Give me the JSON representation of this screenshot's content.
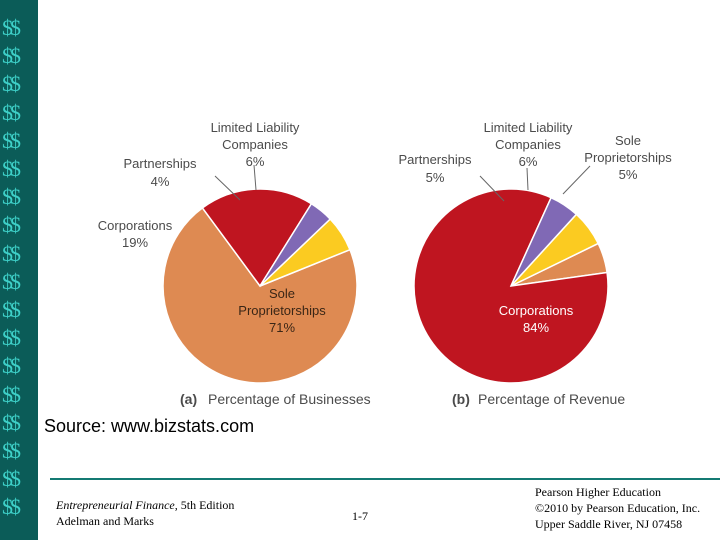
{
  "sidebar": {
    "pattern_text": "$$",
    "repeat_count": 18,
    "bg_color": "#0b5c58",
    "glyph_color": "#3ed0c8"
  },
  "chart_data": [
    {
      "type": "pie",
      "panel_label": "(a)",
      "title": "Percentage of Businesses",
      "slices": [
        {
          "name": "Sole Proprietorships",
          "value": 71,
          "value_label": "71%",
          "color": "#de8a52"
        },
        {
          "name": "Corporations",
          "value": 19,
          "value_label": "19%",
          "color": "#bf1520"
        },
        {
          "name": "Partnerships",
          "value": 4,
          "value_label": "4%",
          "color": "#8069b5"
        },
        {
          "name": "Limited Liability Companies",
          "value": 6,
          "value_label": "6%",
          "color": "#fbcb21"
        }
      ]
    },
    {
      "type": "pie",
      "panel_label": "(b)",
      "title": "Percentage of Revenue",
      "slices": [
        {
          "name": "Sole Proprietorships",
          "value": 5,
          "value_label": "5%",
          "color": "#de8a52"
        },
        {
          "name": "Corporations",
          "value": 84,
          "value_label": "84%",
          "color": "#bf1520"
        },
        {
          "name": "Partnerships",
          "value": 5,
          "value_label": "5%",
          "color": "#8069b5"
        },
        {
          "name": "Limited Liability Companies",
          "value": 6,
          "value_label": "6%",
          "color": "#fbcb21"
        }
      ]
    }
  ],
  "labels": {
    "llc_line1": "Limited Liability",
    "llc_line2": "Companies",
    "partnerships": "Partnerships",
    "corporations": "Corporations",
    "sole_line1": "Sole",
    "sole_line2": "Proprietorships"
  },
  "source": "Source: www.bizstats.com",
  "footer": {
    "book_title": "Entrepreneurial Finance,",
    "edition": " 5th Edition",
    "authors": "Adelman and Marks",
    "page": "1-7",
    "publisher_line1": "Pearson Higher Education",
    "publisher_line2": "©2010 by Pearson Education, Inc.",
    "publisher_line3": "Upper Saddle River, NJ 07458"
  }
}
